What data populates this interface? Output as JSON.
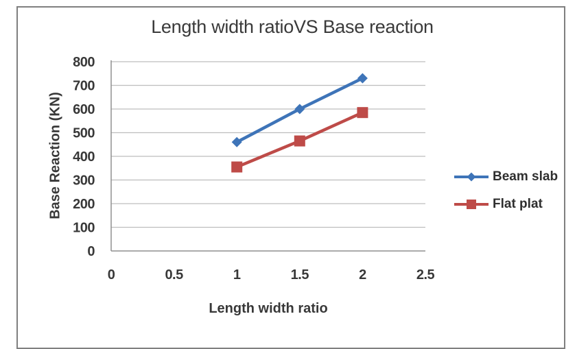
{
  "chart_data": {
    "type": "line",
    "title": "Length width ratioVS Base reaction",
    "xlabel": "Length width ratio",
    "ylabel": "Base Reaction (KN)",
    "x": [
      1,
      1.5,
      2
    ],
    "series": [
      {
        "name": "Beam slab",
        "values": [
          460,
          600,
          730
        ],
        "color": "#3e74b8",
        "marker": "diamond"
      },
      {
        "name": "Flat plat",
        "values": [
          355,
          465,
          585
        ],
        "color": "#be4b48",
        "marker": "square"
      }
    ],
    "xlim": [
      0,
      2.5
    ],
    "ylim": [
      0,
      800
    ],
    "x_ticks": [
      "0",
      "0.5",
      "1",
      "1.5",
      "2",
      "2.5"
    ],
    "y_ticks": [
      "0",
      "100",
      "200",
      "300",
      "400",
      "500",
      "600",
      "700",
      "800"
    ],
    "grid": "horizontal",
    "legend_position": "right",
    "colors": {
      "gridline": "#bdbdbd",
      "axis": "#8f8f8f",
      "frame_border": "#7f7f7f",
      "text": "#383838"
    }
  }
}
